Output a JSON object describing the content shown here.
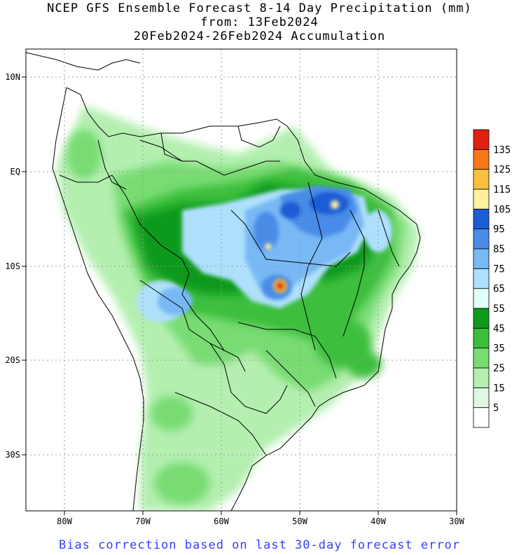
{
  "title": {
    "line1": "NCEP GFS Ensemble Forecast 8-14 Day Precipitation (mm)",
    "line2": "from: 13Feb2024",
    "line3": "20Feb2024-26Feb2024 Accumulation"
  },
  "footer": "Bias correction based on last 30-day forecast error",
  "axes": {
    "lon_labels": [
      "80W",
      "70W",
      "60W",
      "50W",
      "40W",
      "30W"
    ],
    "lat_labels": [
      "10N",
      "EQ",
      "10S",
      "20S",
      "30S"
    ]
  },
  "legend": {
    "levels": [
      "5",
      "15",
      "25",
      "35",
      "45",
      "55",
      "65",
      "75",
      "85",
      "95",
      "105",
      "115",
      "125",
      "135"
    ],
    "colors": [
      "#ffffff",
      "#e0f7e0",
      "#b4efb0",
      "#78dc73",
      "#3cbe3c",
      "#109a1c",
      "#e0fff8",
      "#aee0fb",
      "#78b8f5",
      "#4a8ce8",
      "#1c5cd4",
      "#fff0a0",
      "#f8c040",
      "#f87818",
      "#e02010"
    ]
  },
  "colors": {
    "footer": "#3a3aff",
    "grid": "#999999"
  }
}
